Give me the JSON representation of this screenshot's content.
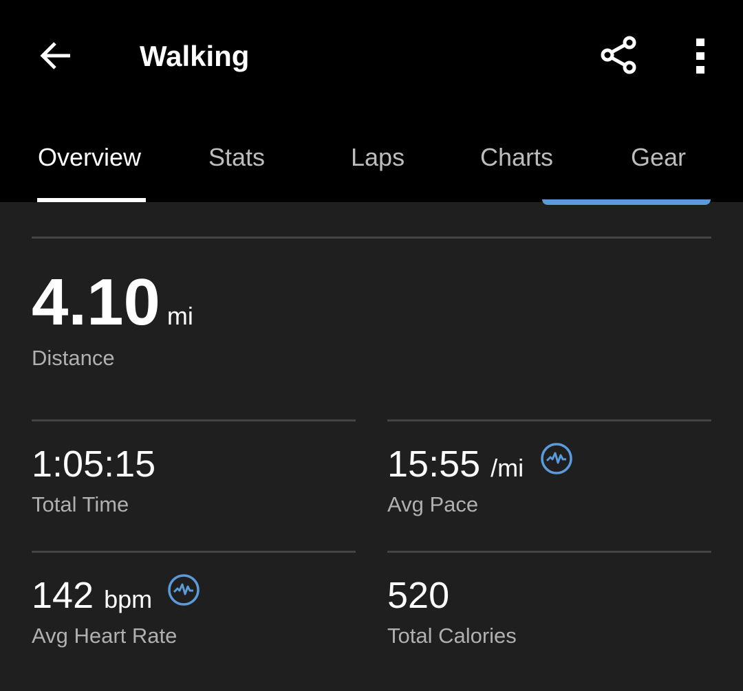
{
  "header": {
    "title": "Walking",
    "back_icon": "arrow-left-icon",
    "share_icon": "share-icon",
    "more_icon": "more-vertical-icon"
  },
  "tabs": [
    {
      "label": "Overview",
      "active": true
    },
    {
      "label": "Stats"
    },
    {
      "label": "Laps"
    },
    {
      "label": "Charts"
    },
    {
      "label": "Gear"
    }
  ],
  "distance": {
    "value": "4.10",
    "unit": "mi",
    "label": "Distance"
  },
  "stats": [
    {
      "value": "1:05:15",
      "unit": "",
      "label": "Total Time"
    },
    {
      "value": "15:55",
      "unit": "/mi",
      "label": "Avg Pace",
      "icon": "heart-rate-icon"
    },
    {
      "value": "142",
      "unit": "bpm",
      "label": "Avg Heart Rate",
      "icon": "heart-rate-icon"
    },
    {
      "value": "520",
      "unit": "",
      "label": "Total Calories"
    }
  ],
  "colors": {
    "accent": "#5b9bd9",
    "background": "#1f1f1f",
    "header": "#000000"
  }
}
